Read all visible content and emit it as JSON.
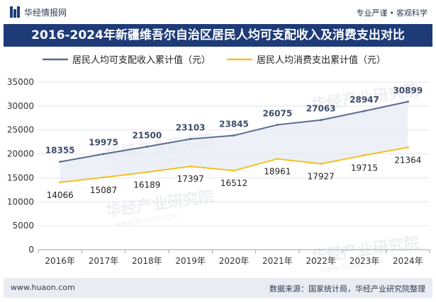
{
  "brand": {
    "name": "华经情报网",
    "logo_icon": "brand-logo-icon"
  },
  "tagline": {
    "left": "专业严谨",
    "right": "客观科学"
  },
  "title": "2016-2024年新疆维吾尔自治区居民人均可支配收入及消费支出对比",
  "watermark": {
    "cn": "华经产业研究院",
    "en": "www.huaon.com"
  },
  "footer": {
    "website": "www.huaon.com",
    "source": "数据来源：国家统计局，华经产业研究院整理"
  },
  "colors": {
    "income": "#5b6b8c",
    "consumption": "#f2c224",
    "title_bg": "#1e3b78",
    "fill": "#e6e9f2"
  },
  "chart_data": {
    "type": "line",
    "categories": [
      "2016年",
      "2017年",
      "2018年",
      "2019年",
      "2020年",
      "2021年",
      "2022年",
      "2023年",
      "2024年"
    ],
    "series": [
      {
        "name": "居民人均可支配收入累计值（元）",
        "values": [
          18355,
          19975,
          21500,
          23103,
          23845,
          26075,
          27063,
          28947,
          30899
        ]
      },
      {
        "name": "居民人均消费支出累计值（元）",
        "values": [
          14066,
          15087,
          16189,
          17397,
          16512,
          18961,
          17927,
          19715,
          21364
        ]
      }
    ],
    "ylim": [
      0,
      35000
    ],
    "yticks": [
      0,
      5000,
      10000,
      15000,
      20000,
      25000,
      30000,
      35000
    ],
    "grid": true,
    "legend": "top"
  }
}
